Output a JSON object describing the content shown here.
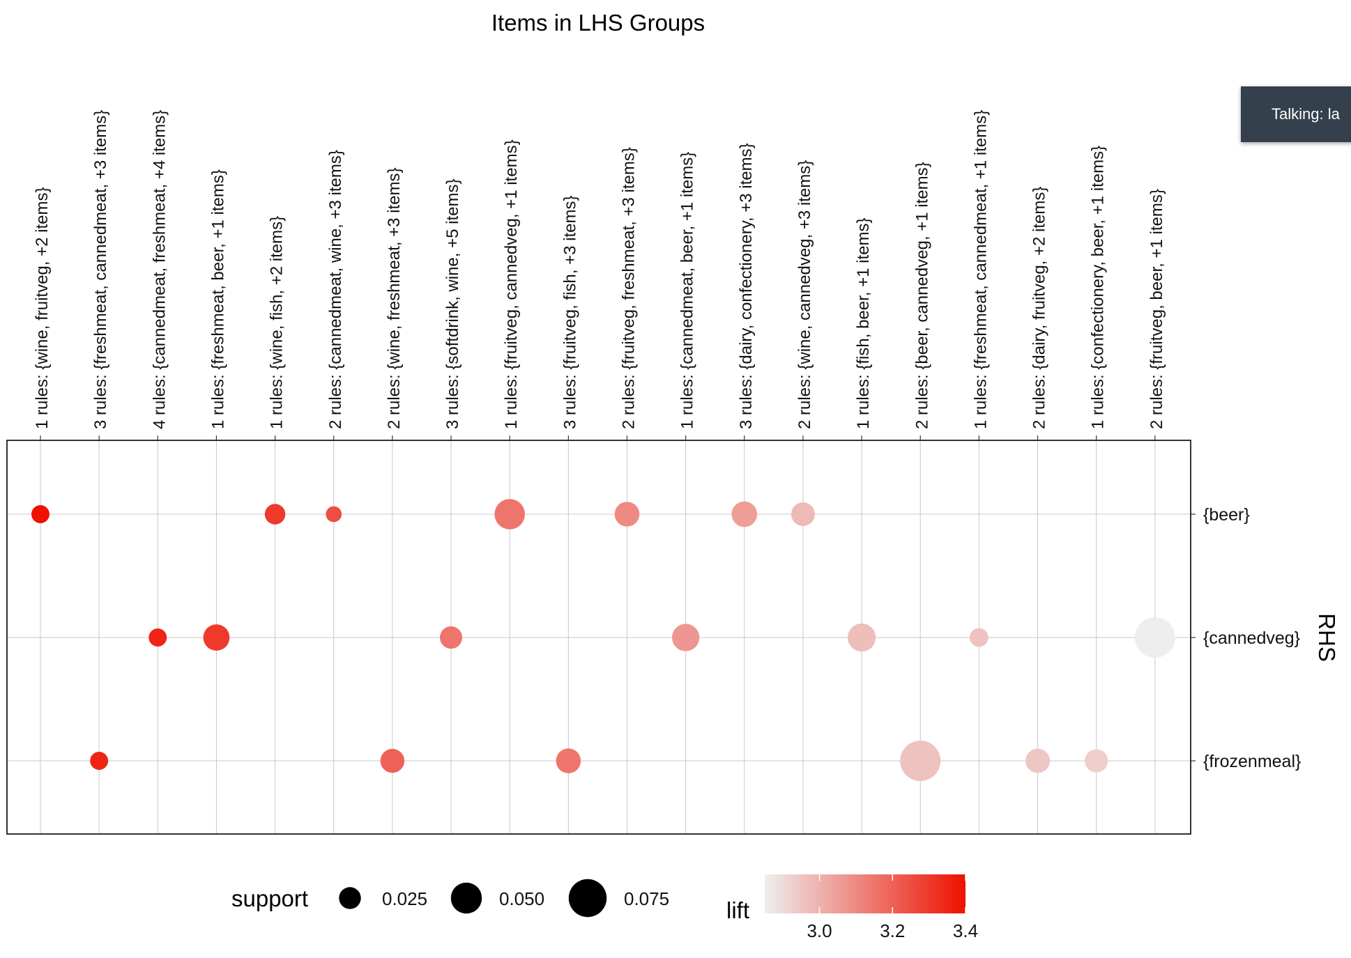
{
  "chart_data": {
    "type": "grouped-matrix",
    "title": "Items in LHS Groups",
    "ylabel": "RHS",
    "x_groups": [
      "1 rules: {wine, fruitveg, +2 items}",
      "3 rules: {freshmeat, cannedmeat, +3 items}",
      "4 rules: {cannedmeat, freshmeat, +4 items}",
      "1 rules: {freshmeat, beer, +1 items}",
      "1 rules: {wine, fish, +2 items}",
      "2 rules: {cannedmeat, wine, +3 items}",
      "2 rules: {wine, freshmeat, +3 items}",
      "3 rules: {softdrink, wine, +5 items}",
      "1 rules: {fruitveg, cannedveg, +1 items}",
      "3 rules: {fruitveg, fish, +3 items}",
      "2 rules: {fruitveg, freshmeat, +3 items}",
      "1 rules: {cannedmeat, beer, +1 items}",
      "3 rules: {dairy, confectionery, +3 items}",
      "2 rules: {wine, cannedveg, +3 items}",
      "1 rules: {fish, beer, +1 items}",
      "2 rules: {beer, cannedveg, +1 items}",
      "1 rules: {freshmeat, cannedmeat, +1 items}",
      "2 rules: {dairy, fruitveg, +2 items}",
      "1 rules: {confectionery, beer, +1 items}",
      "2 rules: {fruitveg, beer, +1 items}"
    ],
    "y_groups": [
      "{beer}",
      "{cannedveg}",
      "{frozenmeal}"
    ],
    "points": [
      {
        "x": 0,
        "y": "{beer}",
        "support": 0.017,
        "lift": 3.4
      },
      {
        "x": 4,
        "y": "{beer}",
        "support": 0.022,
        "lift": 3.3
      },
      {
        "x": 5,
        "y": "{beer}",
        "support": 0.013,
        "lift": 3.25
      },
      {
        "x": 8,
        "y": "{beer}",
        "support": 0.048,
        "lift": 3.15
      },
      {
        "x": 10,
        "y": "{beer}",
        "support": 0.032,
        "lift": 3.1
      },
      {
        "x": 12,
        "y": "{beer}",
        "support": 0.034,
        "lift": 3.05
      },
      {
        "x": 13,
        "y": "{beer}",
        "support": 0.029,
        "lift": 2.98
      },
      {
        "x": 2,
        "y": "{cannedveg}",
        "support": 0.017,
        "lift": 3.35
      },
      {
        "x": 3,
        "y": "{cannedveg}",
        "support": 0.036,
        "lift": 3.3
      },
      {
        "x": 7,
        "y": "{cannedveg}",
        "support": 0.026,
        "lift": 3.15
      },
      {
        "x": 11,
        "y": "{cannedveg}",
        "support": 0.039,
        "lift": 3.07
      },
      {
        "x": 14,
        "y": "{cannedveg}",
        "support": 0.041,
        "lift": 2.97
      },
      {
        "x": 16,
        "y": "{cannedveg}",
        "support": 0.018,
        "lift": 2.96
      },
      {
        "x": 19,
        "y": "{cannedveg}",
        "support": 0.085,
        "lift": 2.85
      },
      {
        "x": 1,
        "y": "{frozenmeal}",
        "support": 0.017,
        "lift": 3.35
      },
      {
        "x": 6,
        "y": "{frozenmeal}",
        "support": 0.03,
        "lift": 3.2
      },
      {
        "x": 9,
        "y": "{frozenmeal}",
        "support": 0.032,
        "lift": 3.15
      },
      {
        "x": 15,
        "y": "{frozenmeal}",
        "support": 0.085,
        "lift": 2.96
      },
      {
        "x": 17,
        "y": "{frozenmeal}",
        "support": 0.031,
        "lift": 2.95
      },
      {
        "x": 18,
        "y": "{frozenmeal}",
        "support": 0.028,
        "lift": 2.93
      }
    ],
    "size_legend": {
      "title": "support",
      "breaks": [
        0.025,
        0.05,
        0.075
      ],
      "labels": [
        "0.025",
        "0.050",
        "0.075"
      ]
    },
    "color_legend": {
      "title": "lift",
      "low_color": "#eeeeee",
      "high_color": "#ee1100",
      "range": [
        2.85,
        3.4
      ],
      "breaks": [
        3.0,
        3.2,
        3.4
      ],
      "labels": [
        "3.0",
        "3.2",
        "3.4"
      ]
    },
    "grid": true
  },
  "overlay": {
    "toast_text": "Talking: la"
  }
}
